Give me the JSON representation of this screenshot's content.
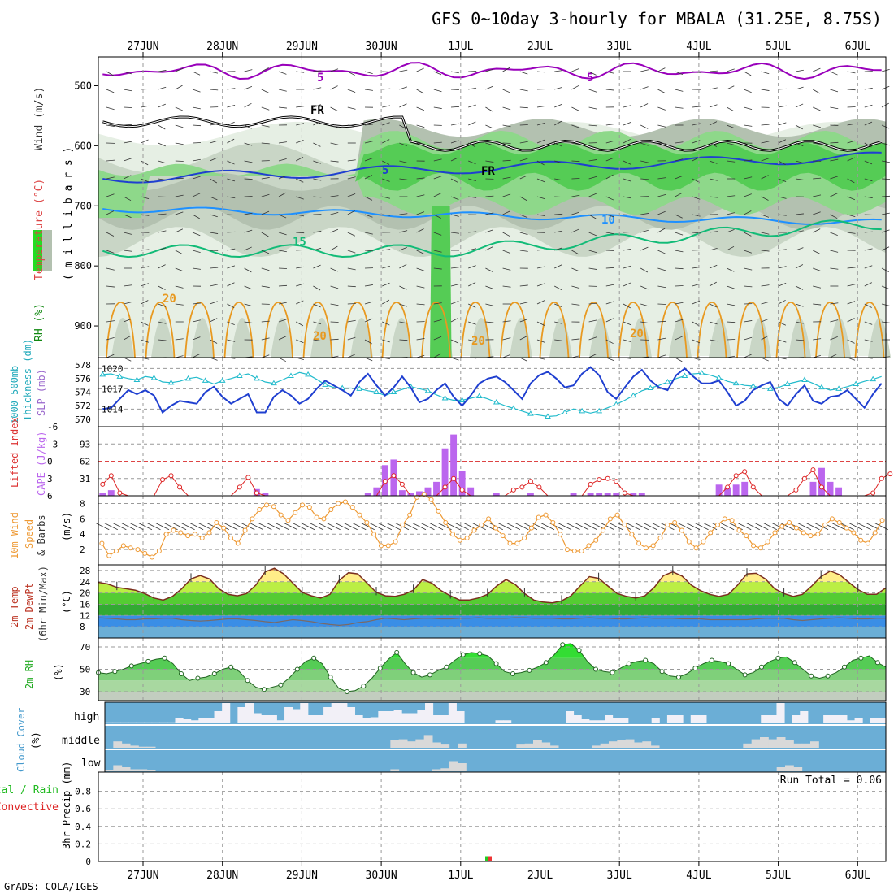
{
  "title": "GFS 0~10day 3-hourly for MBALA (31.25E, 8.75S)",
  "footer": "GrADS: COLA/IGES",
  "date_labels": [
    "27JUN",
    "28JUN",
    "29JUN",
    "30JUN",
    "1JUL",
    "2JUL",
    "3JUL",
    "4JUL",
    "5JUL",
    "6JUL"
  ],
  "colors": {
    "frame": "#000000",
    "grid": "#aaaaaa",
    "rh_green": "#22dd22",
    "temp_purple": "#9900bb",
    "temp_blue": "#1f3fd0",
    "temp_lightblue": "#1e90ff",
    "temp_teal": "#11bb77",
    "temp_orange": "#e89920",
    "slp_blue": "#1f3fd0",
    "thickness_cyan": "#22bbcc",
    "cape_purple": "#bb66ee",
    "li_red": "#dd2222",
    "wind_orange": "#ee9933",
    "cloud_blue": "#6baed6"
  },
  "panels": {
    "upper": {
      "ylabel_parts": [
        "RH (%)",
        "Temperature (°C)",
        "Wind (m/s)",
        "(millibars)"
      ],
      "ylabel_millibars": "( m i l l i b a r s )",
      "yticks": [
        "500",
        "600",
        "700",
        "800",
        "900"
      ],
      "contour_labels": [
        "5",
        "5",
        "5",
        "10",
        "15",
        "20",
        "20",
        "20",
        "20",
        "FR",
        "FR"
      ]
    },
    "slp": {
      "ylabel_1000": "1000-500mb",
      "ylabel_thk": "Thickness (dm)",
      "ylabel_slp": "SLP (mb)",
      "left_ticks": [
        "578",
        "576",
        "574",
        "572",
        "570"
      ],
      "right_ticks": [
        "1020",
        "1017",
        "1014"
      ]
    },
    "cape": {
      "ylabel_li": "Lifted Index",
      "ylabel_cape": "CAPE (J/kg)",
      "left_ticks": [
        "-6",
        "-3",
        "0",
        "3",
        "6"
      ],
      "right_ticks": [
        "93",
        "62",
        "31"
      ]
    },
    "wind": {
      "ylabel_1": "10m Wind",
      "ylabel_2": "Speed",
      "ylabel_3": "& Barbs",
      "unit": "(m/s)",
      "yticks": [
        "8",
        "6",
        "4",
        "2"
      ]
    },
    "temp": {
      "ylabel_1": "2m Temp",
      "ylabel_2": "2m DewPt",
      "ylabel_3": "(6hr Min/Max)",
      "unit": "(°C)",
      "yticks": [
        "28",
        "24",
        "20",
        "16",
        "12",
        "8"
      ]
    },
    "rh": {
      "ylabel": "2m RH",
      "unit": "(%)",
      "yticks": [
        "70",
        "50",
        "30"
      ]
    },
    "cloud": {
      "ylabel": "Cloud Cover",
      "unit": "(%)",
      "levels": [
        "high",
        "middle",
        "low"
      ]
    },
    "precip": {
      "ylabel_1": "Total / Rain",
      "ylabel_2": "Convective",
      "ylabel_3": "3hr Precip (mm)",
      "yticks": [
        "0.8",
        "0.6",
        "0.4",
        "0.2",
        "0"
      ],
      "run_total": "Run Total = 0.06"
    }
  },
  "chart_data": [
    {
      "type": "line",
      "title": "1000-500mb Thickness (dm) / SLP (mb)",
      "x_start": "26JUN 12Z",
      "x_step_hours": 3,
      "series": [
        {
          "name": "SLP (mb)",
          "values": [
            1014.0,
            1014.2,
            1015.5,
            1016.8,
            1016.2,
            1016.8,
            1016.0,
            1013.5,
            1014.5,
            1015.2,
            1015.0,
            1014.8,
            1016.5,
            1017.3,
            1015.8,
            1014.8,
            1015.5,
            1016.2,
            1013.5,
            1013.5,
            1015.8,
            1016.8,
            1016.0,
            1014.8,
            1015.5,
            1017.0,
            1018.2,
            1017.5,
            1016.8,
            1016.0,
            1018.0,
            1019.2,
            1017.5,
            1016.0,
            1017.2,
            1018.8,
            1017.2,
            1015.0,
            1015.5,
            1016.8,
            1017.8,
            1015.8,
            1014.5,
            1016.0,
            1017.8,
            1018.5,
            1018.8,
            1018.0,
            1016.8,
            1015.5,
            1017.8,
            1019.0,
            1019.5,
            1018.5,
            1017.2,
            1017.5,
            1019.2,
            1020.2,
            1019.0,
            1016.5,
            1015.5,
            1017.2,
            1018.8,
            1019.8,
            1018.2,
            1017.2,
            1016.8,
            1019.0,
            1020.0,
            1018.8,
            1017.8,
            1017.8,
            1018.2,
            1016.5,
            1014.5,
            1015.2,
            1016.8,
            1017.5,
            1018.0,
            1015.5,
            1014.5,
            1016.2,
            1017.5,
            1015.2,
            1014.8,
            1015.8,
            1016.0,
            1016.8,
            1015.5,
            1014.2,
            1016.2,
            1017.8
          ]
        },
        {
          "name": "Thickness (dm)",
          "values": [
            576.6,
            576.7,
            576.3,
            576.0,
            575.8,
            576.3,
            576.1,
            575.5,
            575.4,
            575.6,
            576.0,
            576.2,
            575.7,
            575.2,
            575.7,
            576.0,
            576.4,
            576.7,
            576.0,
            575.5,
            575.3,
            575.8,
            576.4,
            576.9,
            576.6,
            575.9,
            575.1,
            574.7,
            574.6,
            574.6,
            574.5,
            574.2,
            574.0,
            573.5,
            574.0,
            574.4,
            574.8,
            574.5,
            574.2,
            573.6,
            573.1,
            572.8,
            572.8,
            573.1,
            573.4,
            573.0,
            572.5,
            572.0,
            571.6,
            571.2,
            570.8,
            570.6,
            570.4,
            570.5,
            571.0,
            571.5,
            571.2,
            570.9,
            571.2,
            571.7,
            572.2,
            572.8,
            573.5,
            574.2,
            574.6,
            575.0,
            575.5,
            576.0,
            576.4,
            576.7,
            576.8,
            576.5,
            576.1,
            575.6,
            575.3,
            575.0,
            574.9,
            574.6,
            574.5,
            574.7,
            575.2,
            575.5,
            575.8,
            575.3,
            574.7,
            574.3,
            574.5,
            574.8,
            575.2,
            575.6,
            575.9,
            576.3
          ]
        }
      ]
    },
    {
      "type": "bar",
      "title": "Lifted Index / CAPE (J/kg)",
      "bars": [
        {
          "x": 0,
          "value": 5
        },
        {
          "x": 1,
          "value": 10
        },
        {
          "x": 18,
          "value": 12
        },
        {
          "x": 19,
          "value": 5
        },
        {
          "x": 31,
          "value": 5
        },
        {
          "x": 32,
          "value": 15
        },
        {
          "x": 33,
          "value": 55
        },
        {
          "x": 34,
          "value": 65
        },
        {
          "x": 35,
          "value": 10
        },
        {
          "x": 36,
          "value": 5
        },
        {
          "x": 37,
          "value": 8
        },
        {
          "x": 38,
          "value": 15
        },
        {
          "x": 39,
          "value": 25
        },
        {
          "x": 40,
          "value": 85
        },
        {
          "x": 41,
          "value": 110
        },
        {
          "x": 42,
          "value": 45
        },
        {
          "x": 43,
          "value": 15
        },
        {
          "x": 46,
          "value": 5
        },
        {
          "x": 50,
          "value": 5
        },
        {
          "x": 55,
          "value": 5
        },
        {
          "x": 57,
          "value": 5
        },
        {
          "x": 58,
          "value": 5
        },
        {
          "x": 59,
          "value": 5
        },
        {
          "x": 60,
          "value": 5
        },
        {
          "x": 62,
          "value": 5
        },
        {
          "x": 63,
          "value": 5
        },
        {
          "x": 72,
          "value": 20
        },
        {
          "x": 73,
          "value": 15
        },
        {
          "x": 74,
          "value": 20
        },
        {
          "x": 75,
          "value": 25
        },
        {
          "x": 83,
          "value": 25
        },
        {
          "x": 84,
          "value": 50
        },
        {
          "x": 85,
          "value": 25
        },
        {
          "x": 86,
          "value": 15
        },
        {
          "x": 93,
          "value": 15
        },
        {
          "x": 94,
          "value": 45
        },
        {
          "x": 95,
          "value": 50
        },
        {
          "x": 96,
          "value": 20
        }
      ],
      "ylim_cape": [
        0,
        124
      ],
      "lifted_index": [
        4.0,
        2.5,
        5.5,
        6,
        6,
        6,
        6,
        3.2,
        2.5,
        4.5,
        6,
        6,
        6,
        6,
        6,
        6,
        4.5,
        2.8,
        5.5,
        6,
        6,
        6,
        6,
        6,
        6,
        6,
        6,
        6,
        6,
        6,
        6,
        6,
        6,
        3.5,
        2.5,
        4,
        6,
        6,
        6,
        6,
        4.5,
        3,
        5,
        6,
        6,
        6,
        6,
        6,
        5,
        4.5,
        3.5,
        4.5,
        6,
        6,
        6,
        6,
        6,
        4,
        3.2,
        3,
        3.5,
        5.5,
        6,
        6,
        6,
        6,
        6,
        6,
        6,
        6,
        6,
        6,
        6,
        4.5,
        2.5,
        1.8,
        4.5,
        6,
        6,
        6,
        6,
        5,
        3,
        1.5,
        4.5,
        6,
        6,
        6,
        6,
        6,
        5.5,
        3,
        2.2
      ]
    },
    {
      "type": "line",
      "title": "10m Wind Speed (m/s)",
      "ylim": [
        0,
        9
      ],
      "values": [
        2.8,
        1.2,
        1.8,
        2.5,
        2.2,
        2.0,
        1.5,
        1.0,
        1.8,
        4.0,
        4.5,
        4.2,
        3.8,
        4.0,
        3.5,
        4.2,
        5.5,
        4.8,
        3.5,
        2.8,
        4.5,
        6.0,
        7.2,
        7.8,
        7.6,
        6.5,
        5.8,
        6.8,
        7.8,
        7.5,
        6.2,
        6.0,
        7.2,
        8.0,
        8.2,
        7.5,
        6.5,
        5.5,
        4.0,
        2.5,
        2.5,
        3.0,
        5.2,
        6.5,
        8.8,
        9.2,
        8.5,
        7.0,
        5.5,
        4.0,
        3.2,
        3.5,
        4.5,
        5.2,
        6.0,
        4.8,
        3.8,
        2.8,
        2.8,
        3.5,
        4.8,
        6.2,
        6.5,
        5.5,
        4.0,
        2.0,
        1.8,
        1.8,
        2.5,
        3.2,
        4.5,
        6.0,
        6.5,
        5.2,
        4.0,
        2.8,
        2.2,
        2.5,
        3.5,
        5.2,
        5.5,
        4.5,
        3.0,
        2.2,
        3.0,
        4.2,
        5.2,
        6.0,
        5.8,
        4.5,
        3.8,
        2.5,
        2.2,
        3.0,
        4.2,
        5.0,
        5.5,
        4.8,
        4.2,
        3.8,
        4.0,
        5.2,
        6.0,
        5.5,
        4.8,
        4.2,
        3.2,
        2.8,
        4.2,
        5.8
      ]
    },
    {
      "type": "area",
      "title": "2m Temp / 2m DewPt (°C)",
      "ylim": [
        4,
        30
      ],
      "temperature": [
        23.8,
        23.2,
        22.0,
        21.5,
        21.0,
        19.8,
        18.2,
        17.5,
        18.8,
        21.5,
        25.0,
        26.2,
        25.0,
        21.5,
        19.5,
        19.0,
        19.8,
        22.8,
        27.5,
        28.8,
        26.8,
        23.5,
        20.2,
        19.0,
        18.2,
        19.5,
        24.5,
        27.2,
        26.8,
        23.5,
        20.2,
        19.0,
        18.8,
        19.5,
        21.0,
        24.8,
        23.5,
        20.8,
        19.0,
        17.5,
        17.5,
        18.2,
        19.5,
        22.5,
        24.8,
        23.0,
        19.8,
        17.5,
        16.8,
        16.5,
        17.2,
        19.0,
        22.5,
        25.8,
        25.2,
        22.5,
        19.8,
        18.8,
        18.2,
        19.0,
        22.0,
        26.2,
        27.5,
        26.0,
        22.8,
        20.8,
        19.5,
        18.8,
        19.5,
        22.8,
        26.8,
        27.0,
        25.0,
        21.5,
        19.8,
        18.8,
        19.5,
        22.5,
        25.8,
        27.8,
        26.5,
        23.8,
        21.2,
        19.5,
        19.5,
        21.8
      ],
      "dewpoint": [
        11.2,
        11.0,
        10.8,
        10.5,
        10.5,
        10.8,
        10.8,
        11.0,
        11.0,
        10.5,
        10.2,
        10.0,
        10.2,
        10.5,
        10.8,
        10.8,
        10.5,
        10.2,
        9.8,
        9.5,
        10.0,
        10.5,
        10.2,
        9.8,
        9.2,
        8.8,
        8.5,
        8.8,
        9.5,
        9.8,
        10.5,
        11.0,
        10.8,
        10.5,
        10.8,
        11.0,
        11.0,
        10.8,
        10.8,
        11.0,
        11.0,
        11.2,
        11.0,
        11.0,
        11.0,
        11.2,
        11.2,
        11.0,
        11.0,
        11.0,
        10.8,
        10.8,
        11.0,
        11.2,
        11.0,
        11.0,
        10.8,
        10.8,
        11.0,
        11.2,
        11.0,
        11.0,
        11.0,
        10.8,
        10.8,
        10.8,
        10.5,
        10.5,
        10.5,
        10.5,
        10.5,
        10.8,
        11.0,
        11.0,
        11.0,
        10.5,
        10.2,
        10.5,
        10.8,
        11.0,
        11.2,
        11.0,
        10.8,
        10.8,
        11.0,
        11.0
      ]
    },
    {
      "type": "area",
      "title": "2m RH (%)",
      "ylim": [
        22,
        78
      ],
      "values": [
        47,
        46,
        48,
        50,
        53,
        55,
        57,
        59,
        60,
        55,
        46,
        40,
        42,
        43,
        46,
        50,
        52,
        48,
        40,
        34,
        32,
        34,
        36,
        42,
        50,
        57,
        60,
        55,
        43,
        33,
        30,
        31,
        35,
        42,
        51,
        59,
        65,
        55,
        47,
        43,
        45,
        49,
        52,
        58,
        63,
        65,
        64,
        62,
        55,
        48,
        46,
        47,
        49,
        52,
        56,
        63,
        72,
        73,
        67,
        57,
        50,
        48,
        47,
        51,
        55,
        57,
        58,
        55,
        48,
        44,
        43,
        46,
        51,
        55,
        58,
        57,
        55,
        50,
        45,
        47,
        52,
        57,
        60,
        61,
        56,
        50,
        44,
        42,
        44,
        47,
        52,
        58,
        60,
        62,
        56,
        52
      ]
    },
    {
      "type": "bar",
      "title": "Cloud Cover (%)",
      "categories": [
        "high",
        "middle",
        "low"
      ],
      "high": [
        5,
        5,
        5,
        5,
        5,
        5,
        5,
        5,
        5,
        25,
        20,
        15,
        25,
        25,
        60,
        100,
        0,
        80,
        100,
        50,
        40,
        40,
        15,
        80,
        70,
        100,
        40,
        40,
        80,
        100,
        100,
        80,
        40,
        25,
        30,
        60,
        60,
        65,
        50,
        50,
        65,
        100,
        40,
        40,
        100,
        60,
        0,
        0,
        0,
        0,
        15,
        15,
        0,
        0,
        0,
        0,
        0,
        0,
        0,
        60,
        40,
        20,
        15,
        15,
        40,
        25,
        25,
        0,
        0,
        0,
        25,
        0,
        40,
        40,
        0,
        40,
        40,
        0,
        0,
        0,
        0,
        0,
        0,
        0,
        40,
        40,
        100,
        0,
        40,
        60,
        0,
        0,
        40,
        40,
        40,
        15,
        25,
        0,
        25,
        25
      ],
      "middle": [
        0,
        30,
        20,
        10,
        5,
        5,
        0,
        0,
        0,
        0,
        0,
        0,
        0,
        0,
        0,
        0,
        0,
        0,
        0,
        0,
        0,
        0,
        0,
        0,
        0,
        0,
        0,
        0,
        0,
        0,
        0,
        0,
        0,
        0,
        35,
        40,
        30,
        40,
        60,
        25,
        15,
        0,
        20,
        0,
        0,
        0,
        0,
        0,
        0,
        15,
        20,
        35,
        25,
        10,
        0,
        0,
        0,
        0,
        10,
        20,
        30,
        35,
        40,
        25,
        30,
        10,
        0,
        0,
        0,
        0,
        0,
        0,
        0,
        0,
        0,
        0,
        20,
        40,
        50,
        40,
        50,
        35,
        20,
        20,
        30,
        0,
        0,
        0,
        0,
        0,
        0,
        0,
        0
      ],
      "low": [
        5,
        30,
        20,
        10,
        10,
        5,
        0,
        0,
        0,
        0,
        0,
        0,
        0,
        0,
        0,
        0,
        0,
        0,
        0,
        0,
        0,
        0,
        0,
        0,
        0,
        0,
        0,
        0,
        0,
        0,
        0,
        0,
        0,
        0,
        10,
        0,
        0,
        0,
        0,
        10,
        15,
        50,
        40,
        0,
        0,
        0,
        0,
        0,
        0,
        0,
        0,
        0,
        0,
        0,
        0,
        0,
        0,
        0,
        0,
        0,
        0,
        0,
        0,
        0,
        0,
        0,
        0,
        0,
        0,
        0,
        0,
        0,
        0,
        0,
        0,
        0,
        0,
        0,
        0,
        0,
        20,
        30,
        20,
        0,
        0,
        0,
        0,
        0,
        0,
        0,
        0,
        0,
        0
      ]
    },
    {
      "type": "bar",
      "title": "3hr Precip (mm)",
      "ylim": [
        0,
        1.0
      ],
      "bars": [
        {
          "x": 39,
          "value": 0.06,
          "name": "Total / Rain"
        },
        {
          "x": 39,
          "value": 0.06,
          "name": "Convective"
        }
      ]
    }
  ]
}
